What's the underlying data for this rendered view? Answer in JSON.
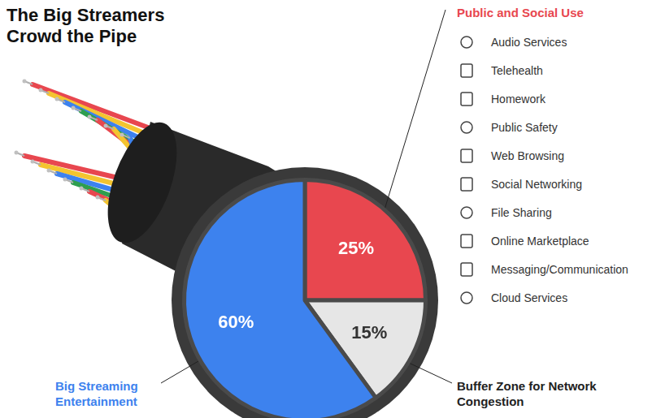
{
  "chart_data": {
    "type": "pie",
    "title": "The Big Streamers Crowd the Pipe",
    "categories": [
      "Public and Social Use",
      "Buffer Zone for Network Congestion",
      "Big Streaming Entertainment"
    ],
    "values": [
      25,
      15,
      60
    ],
    "value_labels": [
      "25%",
      "15%",
      "60%"
    ],
    "colors": [
      "#e8474f",
      "#e6e6e6",
      "#3d82ee"
    ],
    "data_labels": true,
    "breakdown": {
      "category": "Public and Social Use",
      "items": [
        "Audio Services",
        "Telehealth",
        "Homework",
        "Public Safety",
        "Web Browsing",
        "Social Networking",
        "File Sharing",
        "Online Marketplace",
        "Messaging/Communication",
        "Cloud Services"
      ]
    }
  }
}
